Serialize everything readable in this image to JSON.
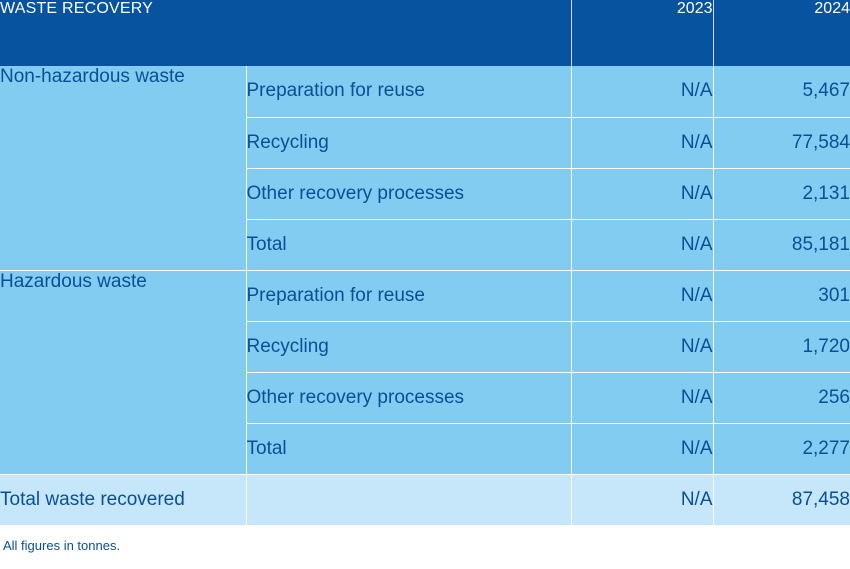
{
  "table": {
    "title": "WASTE RECOVERY",
    "years": [
      "2023",
      "2024"
    ],
    "groups": [
      {
        "category": "Non-hazardous waste",
        "rows": [
          {
            "label": "Preparation for reuse",
            "y2023": "N/A",
            "y2024": "5,467"
          },
          {
            "label": "Recycling",
            "y2023": "N/A",
            "y2024": "77,584"
          },
          {
            "label": "Other recovery processes",
            "y2023": "N/A",
            "y2024": "2,131"
          },
          {
            "label": "Total",
            "y2023": "N/A",
            "y2024": "85,181"
          }
        ]
      },
      {
        "category": "Hazardous waste",
        "rows": [
          {
            "label": "Preparation for reuse",
            "y2023": "N/A",
            "y2024": "301"
          },
          {
            "label": "Recycling",
            "y2023": "N/A",
            "y2024": "1,720"
          },
          {
            "label": "Other recovery processes",
            "y2023": "N/A",
            "y2024": "256"
          },
          {
            "label": "Total",
            "y2023": "N/A",
            "y2024": "2,277"
          }
        ]
      }
    ],
    "grand_total": {
      "label": "Total waste recovered",
      "y2023": "N/A",
      "y2024": "87,458"
    }
  },
  "footnote": "All figures in tonnes.",
  "colors": {
    "header_bg": "#07539f",
    "row_bg": "#82ccf2",
    "total_bg": "#c6e7f9",
    "text": "#0a4f96"
  }
}
